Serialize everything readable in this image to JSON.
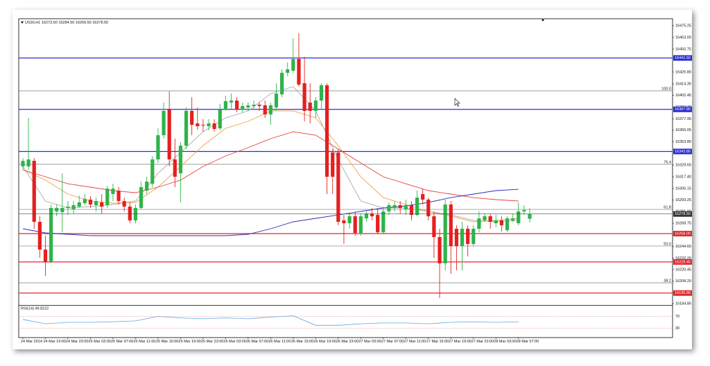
{
  "chart_data": {
    "type": "candlestick",
    "header": "US30,H1 16273.50 16284.50 16269.50 16278.50",
    "up_color": "#2fb34a",
    "down_color": "#e3201f",
    "ylim": [
      16184.85,
      16482.5
    ],
    "yticks": [
      {
        "value": 16475.25,
        "label": "16475.25"
      },
      {
        "value": 16463,
        "label": "16463.00"
      },
      {
        "value": 16450.75,
        "label": "16450.75"
      },
      {
        "value": 16426.8,
        "label": "16426.80"
      },
      {
        "value": 16414.35,
        "label": "16414.35"
      },
      {
        "value": 16402.45,
        "label": "16402.45"
      },
      {
        "value": 16390.2,
        "label": "16390.20"
      },
      {
        "value": 16377.95,
        "label": "16377.95"
      },
      {
        "value": 16366.05,
        "label": "16366.05"
      },
      {
        "value": 16353.8,
        "label": "16353.80"
      },
      {
        "value": 16329.65,
        "label": "16329.65"
      },
      {
        "value": 16317.4,
        "label": "16317.40"
      },
      {
        "value": 16305.15,
        "label": "16305.15"
      },
      {
        "value": 16293.25,
        "label": "16293.25"
      },
      {
        "value": 16281,
        "label": "16281.00"
      },
      {
        "value": 16268.75,
        "label": "16268.75"
      },
      {
        "value": 16256.85,
        "label": "16256.85"
      },
      {
        "value": 16244.6,
        "label": "16244.60"
      },
      {
        "value": 16232.2,
        "label": "16232.20"
      },
      {
        "value": 16220.45,
        "label": "16220.45"
      },
      {
        "value": 16208.2,
        "label": "16208.20"
      },
      {
        "value": 16196.3,
        "label": "16196.30"
      },
      {
        "value": 16184.85,
        "label": "16184.85"
      }
    ],
    "categories": [
      "24 Mar 2014",
      null,
      null,
      null,
      "24 Mar 19:00",
      null,
      null,
      null,
      "24 Mar 23:00",
      null,
      null,
      null,
      "25 Mar 03:00",
      null,
      null,
      null,
      "25 Mar 07:00",
      null,
      null,
      null,
      "25 Mar 11:00",
      null,
      null,
      null,
      "25 Mar 15:00",
      null,
      null,
      null,
      "25 Mar 19:00",
      null,
      null,
      null,
      "25 Mar 23:00",
      null,
      null,
      null,
      "26 Mar 03:00",
      null,
      null,
      null,
      "26 Mar 07:00",
      null,
      null,
      null,
      "26 Mar 11:00",
      null,
      null,
      null,
      "26 Mar 15:00",
      null,
      null,
      null,
      "26 Mar 19:00",
      null,
      null,
      null,
      "26 Mar 23:00",
      null,
      null,
      null,
      "27 Mar 03:00",
      null,
      null,
      null,
      "27 Mar 07:00",
      null,
      null,
      null,
      "27 Mar 11:00",
      null,
      null,
      null,
      "27 Mar 15:00",
      null,
      null,
      null,
      "27 Mar 19:00",
      null,
      null,
      null,
      "27 Mar 23:00",
      null,
      null,
      null,
      "28 Mar 03:00",
      null,
      null,
      null,
      "28 Mar 07:00",
      null,
      null
    ],
    "open": [
      16328.2,
      16328.2,
      16334.0,
      16270.3,
      16241.3,
      16228.3,
      16281.2,
      16280.4,
      16284.8,
      16283.4,
      16286.2,
      16289.8,
      16293.5,
      16287.7,
      16290.6,
      16287.7,
      16299.3,
      16302.9,
      16292.0,
      16286.2,
      16271.8,
      16284.8,
      16302.9,
      16310.1,
      16335.5,
      16360.8,
      16387.6,
      16335.5,
      16321.0,
      16349.9,
      16386.2,
      16373.1,
      16371.7,
      16370.2,
      16373.1,
      16368.0,
      16387.6,
      16394.9,
      16397.0,
      16387.6,
      16389.8,
      16391.3,
      16392.7,
      16392.0,
      16382.5,
      16389.8,
      16403.5,
      16426.0,
      16428.2,
      16440.5,
      16415.1,
      16394.9,
      16386.2,
      16397.0,
      16413.0,
      16342.7,
      16342.7,
      16271.8,
      16268.8,
      16276.1,
      16258.7,
      16273.9,
      16279.0,
      16277.5,
      16259.4,
      16281.2,
      16284.8,
      16287.7,
      16283.4,
      16287.7,
      16277.5,
      16299.3,
      16293.5,
      16276.1,
      16254.4,
      16226.9,
      16288.4,
      16263.1,
      16244.9,
      16263.1,
      16247.1,
      16263.1,
      16271.8,
      16276.1,
      16268.8,
      16271.8,
      16261.6,
      16271.8,
      16268.8,
      16281.2,
      16273.5
    ],
    "high": [
      16336.9,
      16378.9,
      16336.9,
      16276.1,
      16255.8,
      16288.4,
      16288.4,
      16321.0,
      16292.0,
      16292.0,
      16297.8,
      16299.3,
      16297.1,
      16295.6,
      16299.3,
      16307.9,
      16310.1,
      16306.5,
      16295.6,
      16290.6,
      16288.4,
      16312.3,
      16317.4,
      16339.1,
      16368.0,
      16394.9,
      16406.5,
      16357.2,
      16353.5,
      16389.8,
      16400.6,
      16389.8,
      16377.5,
      16377.5,
      16377.5,
      16393.4,
      16402.1,
      16404.3,
      16400.6,
      16394.9,
      16394.9,
      16397.0,
      16394.9,
      16397.0,
      16394.9,
      16415.1,
      16429.6,
      16436.9,
      16462.2,
      16467.3,
      16442.7,
      16415.1,
      16400.6,
      16415.1,
      16415.1,
      16346.4,
      16346.4,
      16277.5,
      16279.0,
      16281.2,
      16279.0,
      16281.2,
      16284.8,
      16284.8,
      16286.2,
      16290.6,
      16292.0,
      16292.0,
      16293.5,
      16292.0,
      16302.9,
      16305.0,
      16295.6,
      16281.2,
      16263.1,
      16293.5,
      16292.0,
      16266.7,
      16270.3,
      16266.7,
      16266.7,
      16281.2,
      16279.0,
      16279.0,
      16277.5,
      16276.1,
      16276.1,
      16279.0,
      16290.6,
      16287.7,
      16284.5
    ],
    "low": [
      16324.6,
      16324.6,
      16263.1,
      16232.6,
      16213.8,
      16226.9,
      16276.1,
      16259.4,
      16277.5,
      16279.0,
      16284.8,
      16287.7,
      16284.8,
      16281.2,
      16279.0,
      16284.8,
      16292.0,
      16288.4,
      16281.2,
      16268.8,
      16268.8,
      16283.4,
      16299.3,
      16306.5,
      16331.8,
      16357.2,
      16328.2,
      16306.5,
      16290.6,
      16346.4,
      16360.8,
      16366.6,
      16364.4,
      16365.9,
      16364.4,
      16365.9,
      16386.2,
      16387.6,
      16384.7,
      16384.7,
      16386.2,
      16387.6,
      16386.2,
      16378.9,
      16371.7,
      16386.2,
      16400.6,
      16422.4,
      16426.0,
      16411.5,
      16375.3,
      16373.1,
      16378.9,
      16387.6,
      16299.3,
      16299.3,
      16266.7,
      16247.1,
      16263.1,
      16255.8,
      16255.8,
      16270.3,
      16271.8,
      16257.3,
      16257.3,
      16277.5,
      16281.2,
      16279.0,
      16277.5,
      16271.8,
      16276.1,
      16288.4,
      16271.8,
      16232.6,
      16190.6,
      16219.6,
      16216.0,
      16219.6,
      16219.6,
      16234.1,
      16244.9,
      16259.4,
      16270.3,
      16263.1,
      16264.5,
      16260.2,
      16259.4,
      16270.3,
      16266.7,
      16277.5,
      16269.5
    ],
    "close": [
      16334.0,
      16335.5,
      16270.3,
      16241.3,
      16228.3,
      16284.8,
      16284.8,
      16284.8,
      16286.2,
      16287.7,
      16290.6,
      16294.2,
      16288.4,
      16292.0,
      16286.2,
      16305.0,
      16305.0,
      16292.0,
      16286.2,
      16271.8,
      16284.8,
      16306.5,
      16312.3,
      16335.5,
      16360.8,
      16386.2,
      16335.5,
      16317.4,
      16349.9,
      16386.2,
      16371.7,
      16370.2,
      16370.9,
      16373.1,
      16367.3,
      16387.6,
      16396.3,
      16397.0,
      16387.6,
      16391.3,
      16392.0,
      16392.7,
      16391.3,
      16382.5,
      16392.0,
      16404.3,
      16426.0,
      16429.6,
      16440.5,
      16413.7,
      16386.2,
      16386.2,
      16397.0,
      16413.0,
      16317.4,
      16317.4,
      16270.3,
      16268.8,
      16276.1,
      16258.7,
      16276.1,
      16279.0,
      16276.1,
      16259.4,
      16281.2,
      16287.7,
      16287.7,
      16284.8,
      16287.7,
      16277.5,
      16295.6,
      16293.5,
      16276.1,
      16254.4,
      16226.9,
      16288.4,
      16244.9,
      16244.9,
      16263.1,
      16247.1,
      16263.1,
      16273.9,
      16276.1,
      16270.3,
      16271.8,
      16266.7,
      16273.9,
      16273.9,
      16281.2,
      16282.6,
      16278.5
    ],
    "overlays": [
      {
        "color": "#a9a9a9",
        "values": [
          16328.2,
          16292.0,
          16284.8,
          16286.2,
          16288.4,
          16292.0,
          16321.0,
          16342.7,
          16364.4,
          16378.9,
          16386.2,
          16404.3,
          16411.5,
          16386.2,
          16335.5,
          16292.0,
          16284.8,
          16284.8,
          16281.2,
          16277.5,
          16271.8,
          16270.3,
          16271.8
        ]
      },
      {
        "color": "#f0a040",
        "values": [
          16324.6,
          16313.8,
          16299.3,
          16292.0,
          16289.8,
          16290.6,
          16306.5,
          16328.2,
          16349.9,
          16368.0,
          16375.3,
          16386.2,
          16386.2,
          16378.9,
          16349.9,
          16317.4,
          16295.6,
          16288.4,
          16281.2,
          16276.1,
          16270.3,
          16271.8,
          16273.9
        ]
      },
      {
        "color": "#e8403a",
        "values": [
          16324.6,
          16317.4,
          16310.1,
          16306.5,
          16302.9,
          16300.7,
          16306.5,
          16313.8,
          16328.2,
          16339.1,
          16347.8,
          16357.2,
          16364.4,
          16360.8,
          16346.4,
          16331.8,
          16317.4,
          16310.1,
          16302.9,
          16299.3,
          16295.6,
          16293.5,
          16292.0
        ]
      },
      {
        "color": "#2a2ab8",
        "values": [
          16263.1,
          16258.7,
          16257.3,
          16255.8,
          16255.8,
          16255.8,
          16255.8,
          16255.8,
          16255.8,
          16255.8,
          16257.3,
          16263.1,
          16270.3,
          16273.9,
          16277.5,
          16281.2,
          16284.8,
          16286.9,
          16290.6,
          16295.6,
          16299.3,
          16302.9,
          16304.3
        ]
      }
    ],
    "levels": [
      {
        "value": 16441.5,
        "label": "16441.50",
        "color": "#2b2bd6"
      },
      {
        "value": 16387.8,
        "label": "16387.80",
        "color": "#2b2bd6"
      },
      {
        "value": 16343.8,
        "label": "16343.80",
        "color": "#2b2bd6"
      },
      {
        "value": 16258,
        "label": "16258.00",
        "color": "#e0262c"
      },
      {
        "value": 16228.4,
        "label": "16228.40",
        "color": "#e0262c"
      },
      {
        "value": 16195.9,
        "label": "16195.90",
        "color": "#e0262c"
      }
    ],
    "fib_levels": [
      {
        "price": 16407.2,
        "ratio_label": "100.0"
      },
      {
        "price": 16330.4,
        "ratio_label": "76.4"
      },
      {
        "price": 16283.3,
        "ratio_label": "61.8"
      },
      {
        "price": 16245.0,
        "ratio_label": "50.0"
      },
      {
        "price": 16206.6,
        "ratio_label": "38.2"
      }
    ],
    "last_price": {
      "value": 16278.5,
      "label": "16278.50"
    },
    "rsi": {
      "title": "RSI(14) 49.8222",
      "color": "#5aa7e0",
      "ylim": [
        0,
        100
      ],
      "yticks": [
        70,
        30
      ],
      "values": [
        60,
        45,
        50,
        50,
        52,
        55,
        70,
        65,
        62,
        65,
        62,
        68,
        72,
        40,
        40,
        45,
        48,
        48,
        45,
        50,
        52,
        50,
        52
      ]
    }
  }
}
